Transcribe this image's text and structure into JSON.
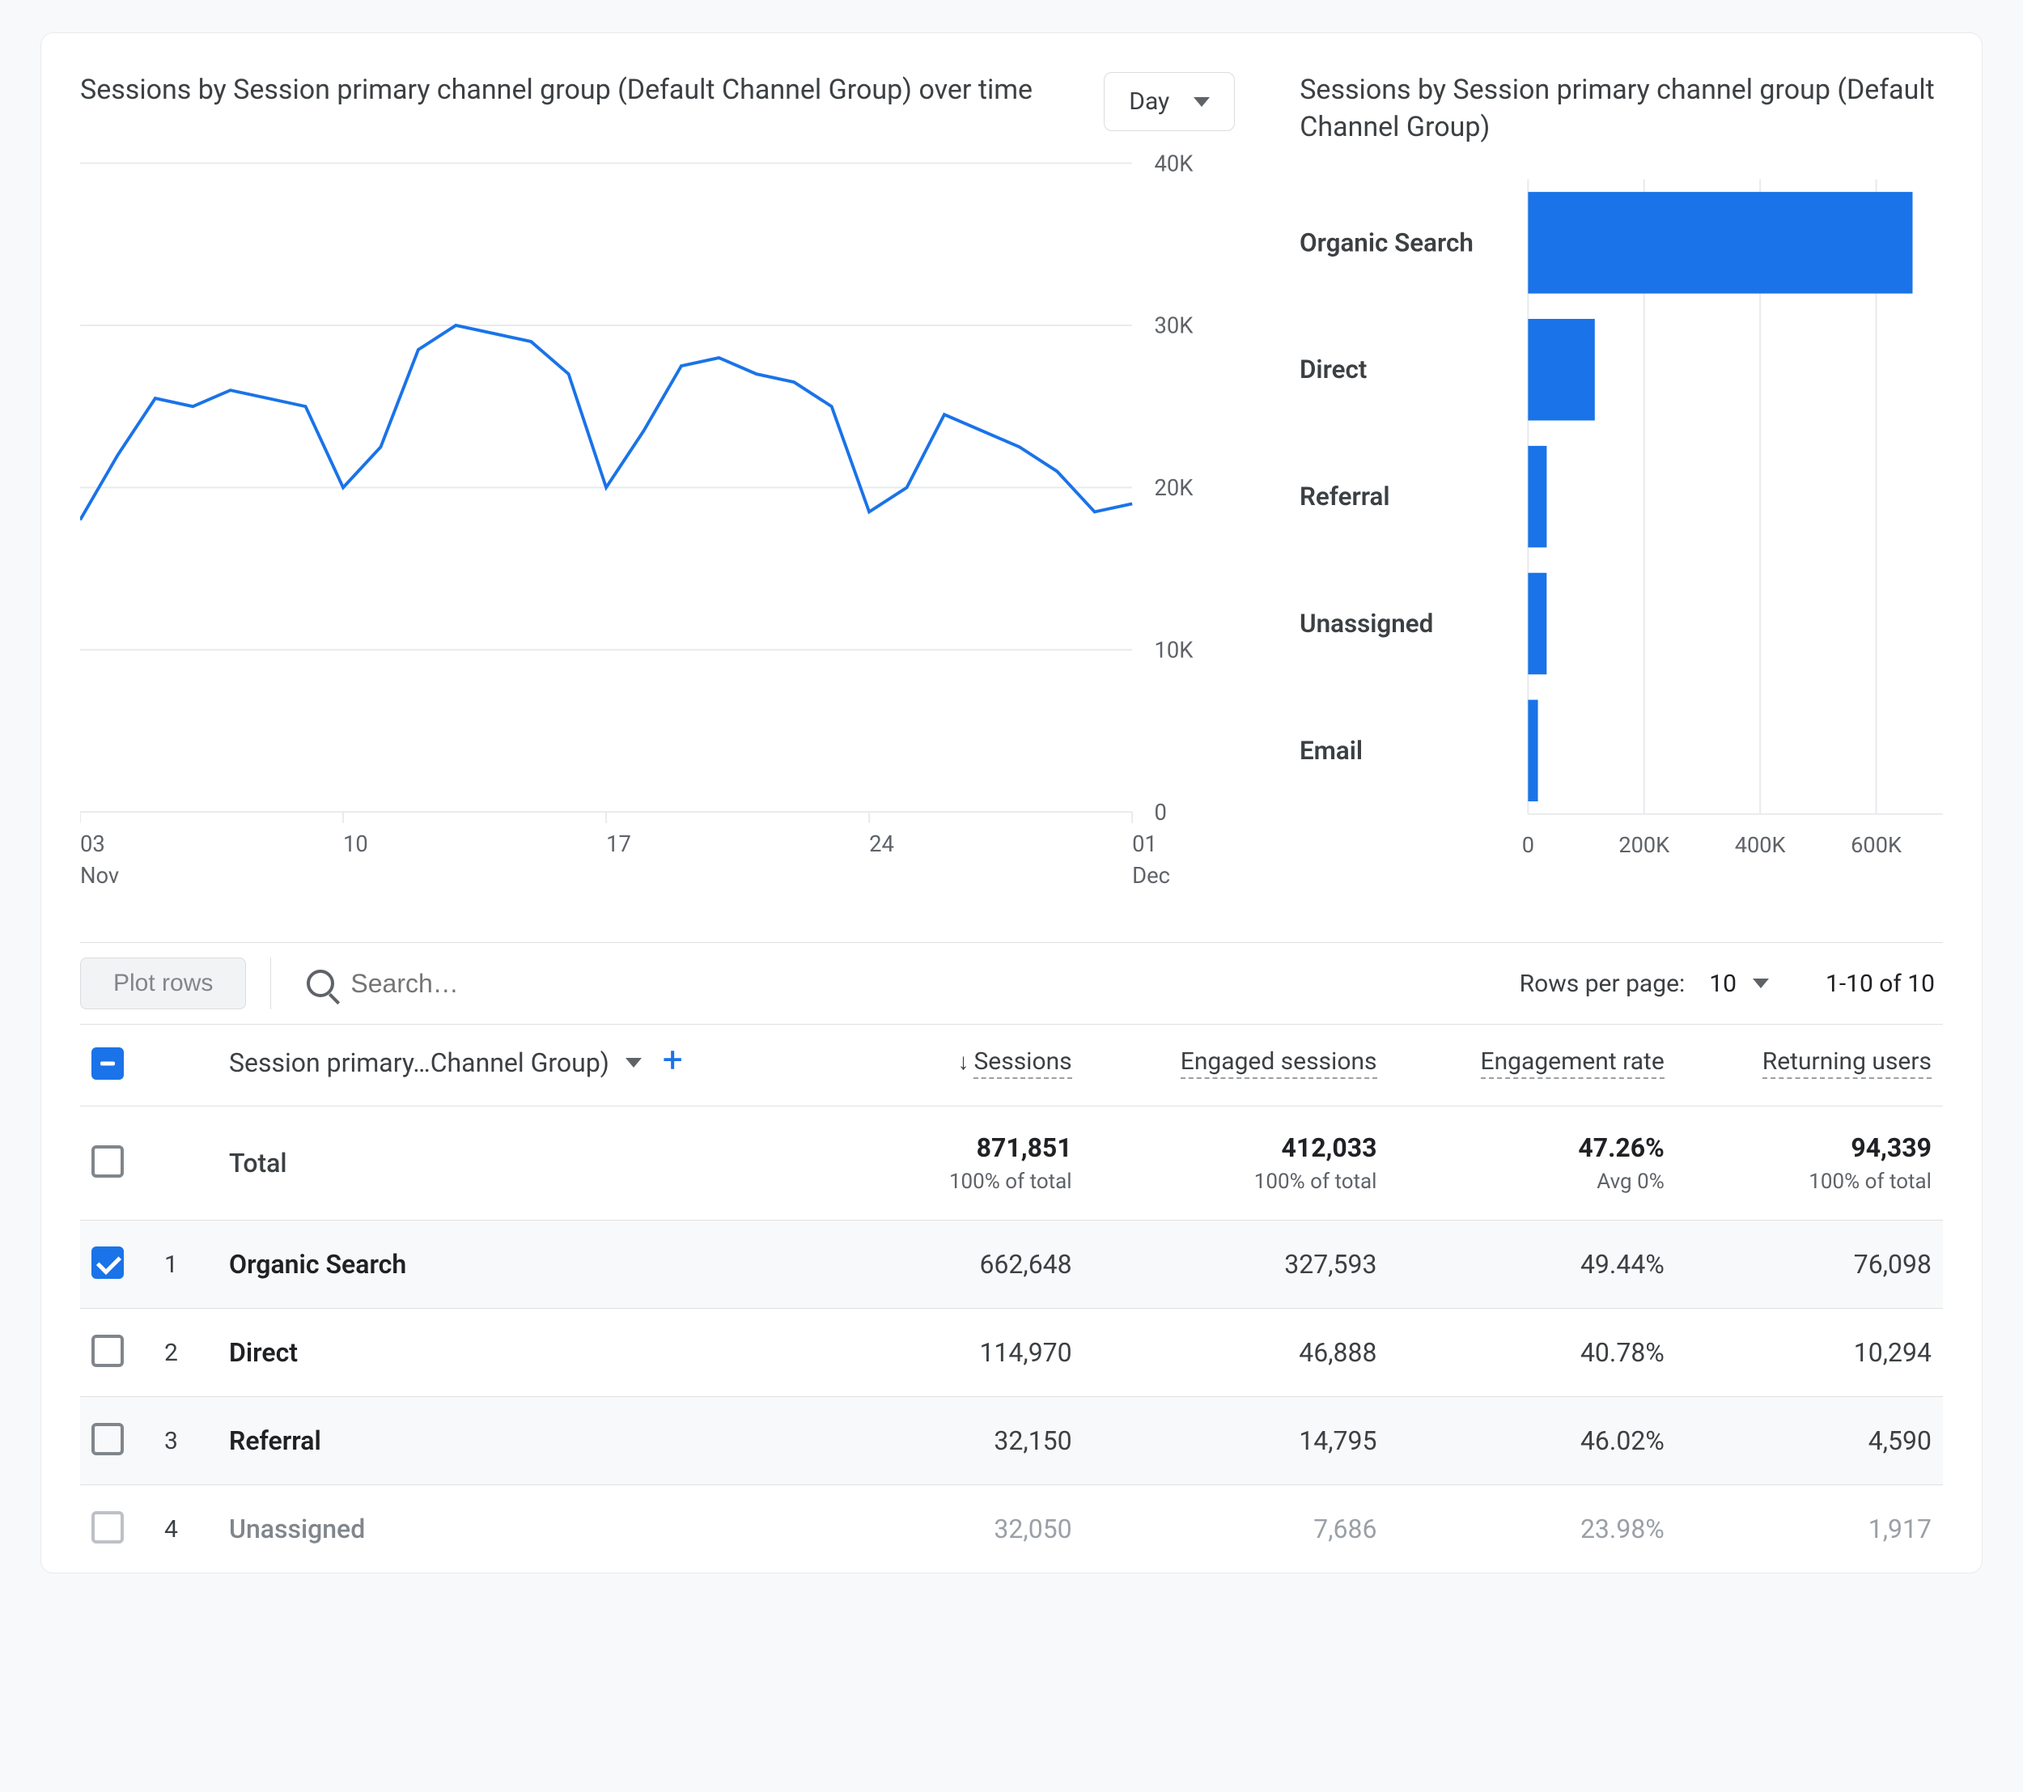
{
  "line_chart": {
    "title": "Sessions by Session primary channel group (Default Channel Group) over time",
    "time_grain_selected": "Day",
    "type": "line",
    "series_color": "#1a73e8",
    "grid_color": "#e8eaed",
    "background_color": "#ffffff",
    "line_width": 4,
    "ylim": [
      0,
      40000
    ],
    "y_ticks": [
      0,
      10000,
      20000,
      30000,
      40000
    ],
    "y_tick_labels": [
      "0",
      "10K",
      "20K",
      "30K",
      "40K"
    ],
    "x_tick_values": [
      3,
      10,
      17,
      24,
      31
    ],
    "x_tick_labels_top": [
      "03",
      "10",
      "17",
      "24",
      "01"
    ],
    "x_tick_labels_bottom": [
      "Nov",
      "",
      "",
      "",
      "Dec"
    ],
    "x_domain": [
      3,
      31
    ],
    "points": [
      [
        3,
        18000
      ],
      [
        4,
        22000
      ],
      [
        5,
        25500
      ],
      [
        6,
        25000
      ],
      [
        7,
        26000
      ],
      [
        8,
        25500
      ],
      [
        9,
        25000
      ],
      [
        10,
        20000
      ],
      [
        11,
        22500
      ],
      [
        12,
        28500
      ],
      [
        13,
        30000
      ],
      [
        14,
        29500
      ],
      [
        15,
        29000
      ],
      [
        16,
        27000
      ],
      [
        17,
        20000
      ],
      [
        18,
        23500
      ],
      [
        19,
        27500
      ],
      [
        20,
        28000
      ],
      [
        21,
        27000
      ],
      [
        22,
        26500
      ],
      [
        23,
        25000
      ],
      [
        24,
        18500
      ],
      [
        25,
        20000
      ],
      [
        26,
        24500
      ],
      [
        27,
        23500
      ],
      [
        28,
        22500
      ],
      [
        29,
        21000
      ],
      [
        30,
        18500
      ],
      [
        31,
        19000
      ]
    ]
  },
  "bar_chart": {
    "title": "Sessions by Session primary channel group (Default Channel Group)",
    "type": "bar-horizontal",
    "bar_color": "#1a73e8",
    "grid_color": "#e8eaed",
    "xlim": [
      0,
      700000
    ],
    "x_ticks": [
      0,
      200000,
      400000,
      600000
    ],
    "x_tick_labels": [
      "0",
      "200K",
      "400K",
      "600K"
    ],
    "bars": [
      {
        "label": "Organic Search",
        "value": 662648
      },
      {
        "label": "Direct",
        "value": 114970
      },
      {
        "label": "Referral",
        "value": 32150
      },
      {
        "label": "Unassigned",
        "value": 32050
      },
      {
        "label": "Email",
        "value": 17000
      }
    ]
  },
  "toolbar": {
    "plot_rows_label": "Plot rows",
    "search_placeholder": "Search…",
    "rows_per_page_label": "Rows per page:",
    "rows_per_page_value": "10",
    "page_info": "1-10 of 10"
  },
  "table": {
    "dimension_header": "Session primary…Channel Group)",
    "metric_headers": [
      {
        "label": "Sessions",
        "sorted": true
      },
      {
        "label": "Engaged sessions"
      },
      {
        "label": "Engagement rate"
      },
      {
        "label": "Returning users"
      }
    ],
    "total": {
      "label": "Total",
      "values": [
        "871,851",
        "412,033",
        "47.26%",
        "94,339"
      ],
      "subs": [
        "100% of total",
        "100% of total",
        "Avg 0%",
        "100% of total"
      ]
    },
    "rows": [
      {
        "checked": true,
        "index": 1,
        "name": "Organic Search",
        "values": [
          "662,648",
          "327,593",
          "49.44%",
          "76,098"
        ],
        "faded": false
      },
      {
        "checked": false,
        "index": 2,
        "name": "Direct",
        "values": [
          "114,970",
          "46,888",
          "40.78%",
          "10,294"
        ],
        "faded": false
      },
      {
        "checked": false,
        "index": 3,
        "name": "Referral",
        "values": [
          "32,150",
          "14,795",
          "46.02%",
          "4,590"
        ],
        "faded": false
      },
      {
        "checked": false,
        "index": 4,
        "name": "Unassigned",
        "values": [
          "32,050",
          "7,686",
          "23.98%",
          "1,917"
        ],
        "faded": true
      }
    ]
  }
}
